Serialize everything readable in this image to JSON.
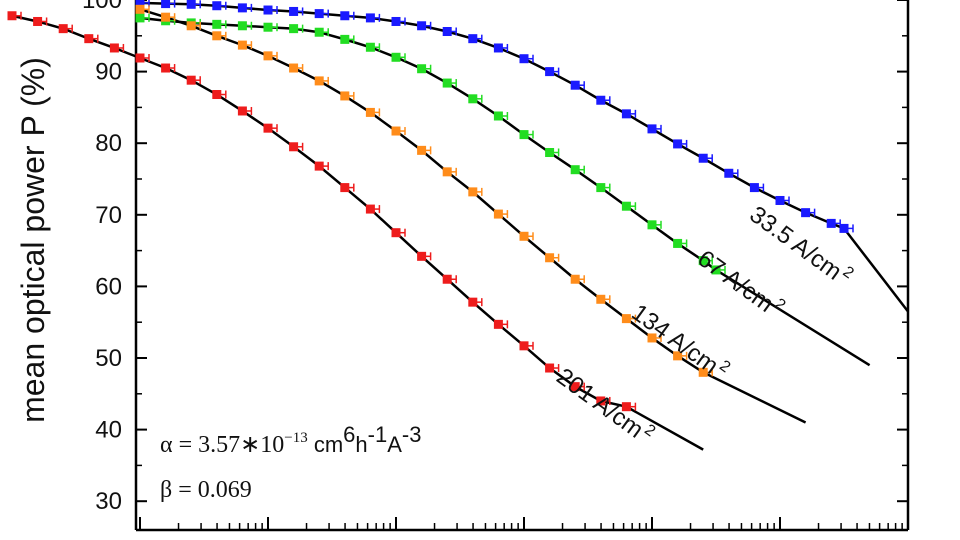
{
  "chart_data": {
    "type": "scatter",
    "title": "",
    "ylabel": "mean optical power P (%)",
    "xlabel": "",
    "x_scale": "log",
    "ylim": [
      25,
      100
    ],
    "yticks": [
      30,
      40,
      50,
      60,
      70,
      80,
      90,
      100
    ],
    "ytick_labels": [
      "30",
      "40",
      "50",
      "60",
      "70",
      "80",
      "90",
      "100"
    ],
    "grid": false,
    "annotations": {
      "alpha_symbol": "α",
      "alpha_value": " = 3.57∗10",
      "alpha_exp": "−13",
      "alpha_unit_cm": " cm",
      "alpha_unit_cm_exp": "6",
      "alpha_unit_h": "h",
      "alpha_unit_h_exp": "-1",
      "alpha_unit_A": "A",
      "alpha_unit_A_exp": "-3",
      "beta_text": "β = 0.069"
    },
    "series": [
      {
        "label": "33.5 A/cm",
        "label_exp": "2",
        "color": "#1a1aff",
        "points": [
          [
            1.0,
            99.6
          ],
          [
            1.2,
            99.5
          ],
          [
            1.4,
            99.4
          ],
          [
            1.6,
            99.2
          ],
          [
            1.8,
            98.9
          ],
          [
            2.0,
            98.6
          ],
          [
            2.2,
            98.4
          ],
          [
            2.4,
            98.1
          ],
          [
            2.6,
            97.8
          ],
          [
            2.8,
            97.5
          ],
          [
            3.0,
            97.0
          ],
          [
            3.2,
            96.4
          ],
          [
            3.4,
            95.6
          ],
          [
            3.6,
            94.6
          ],
          [
            3.8,
            93.3
          ],
          [
            4.0,
            91.8
          ],
          [
            4.2,
            90.0
          ],
          [
            4.4,
            88.1
          ],
          [
            4.6,
            86.0
          ],
          [
            4.8,
            84.1
          ],
          [
            5.0,
            82.0
          ],
          [
            5.2,
            79.9
          ],
          [
            5.4,
            77.9
          ],
          [
            5.6,
            75.8
          ],
          [
            5.8,
            73.8
          ],
          [
            6.0,
            72.0
          ],
          [
            6.2,
            70.3
          ],
          [
            6.4,
            68.8
          ],
          [
            6.5,
            68.1
          ]
        ]
      },
      {
        "label": "67 A/cm",
        "label_exp": "2",
        "color": "#22dd22",
        "points": [
          [
            1.0,
            97.5
          ],
          [
            1.2,
            97.1
          ],
          [
            1.4,
            96.8
          ],
          [
            1.6,
            96.6
          ],
          [
            1.8,
            96.4
          ],
          [
            2.0,
            96.2
          ],
          [
            2.2,
            96.0
          ],
          [
            2.4,
            95.5
          ],
          [
            2.6,
            94.5
          ],
          [
            2.8,
            93.4
          ],
          [
            3.0,
            92.0
          ],
          [
            3.2,
            90.4
          ],
          [
            3.4,
            88.4
          ],
          [
            3.6,
            86.2
          ],
          [
            3.8,
            83.8
          ],
          [
            4.0,
            81.2
          ],
          [
            4.2,
            78.7
          ],
          [
            4.4,
            76.3
          ],
          [
            4.6,
            73.8
          ],
          [
            4.8,
            71.2
          ],
          [
            5.0,
            68.6
          ],
          [
            5.2,
            66.0
          ],
          [
            5.4,
            63.6
          ],
          [
            5.5,
            62.3
          ]
        ]
      },
      {
        "label": "134 A/cm",
        "label_exp": "2",
        "color": "#ff8c1a",
        "points": [
          [
            1.0,
            98.7
          ],
          [
            1.2,
            97.6
          ],
          [
            1.4,
            96.4
          ],
          [
            1.6,
            95.0
          ],
          [
            1.8,
            93.7
          ],
          [
            2.0,
            92.2
          ],
          [
            2.2,
            90.5
          ],
          [
            2.4,
            88.7
          ],
          [
            2.6,
            86.6
          ],
          [
            2.8,
            84.3
          ],
          [
            3.0,
            81.7
          ],
          [
            3.2,
            79.0
          ],
          [
            3.4,
            76.0
          ],
          [
            3.6,
            73.2
          ],
          [
            3.8,
            70.1
          ],
          [
            4.0,
            67.0
          ],
          [
            4.2,
            64.0
          ],
          [
            4.4,
            61.0
          ],
          [
            4.6,
            58.2
          ],
          [
            4.8,
            55.5
          ],
          [
            5.0,
            52.8
          ],
          [
            5.2,
            50.3
          ],
          [
            5.4,
            48.0
          ]
        ]
      },
      {
        "label": "201 A/cm",
        "label_exp": "2",
        "color": "#ee1c1c",
        "points": [
          [
            0.0,
            97.8
          ],
          [
            0.2,
            97.0
          ],
          [
            0.4,
            96.0
          ],
          [
            0.6,
            94.6
          ],
          [
            0.8,
            93.3
          ],
          [
            1.0,
            91.9
          ],
          [
            1.2,
            90.5
          ],
          [
            1.4,
            88.8
          ],
          [
            1.6,
            86.8
          ],
          [
            1.8,
            84.5
          ],
          [
            2.0,
            82.1
          ],
          [
            2.2,
            79.5
          ],
          [
            2.4,
            76.8
          ],
          [
            2.6,
            73.8
          ],
          [
            2.8,
            70.8
          ],
          [
            3.0,
            67.5
          ],
          [
            3.2,
            64.2
          ],
          [
            3.4,
            61.0
          ],
          [
            3.6,
            57.8
          ],
          [
            3.8,
            54.7
          ],
          [
            4.0,
            51.7
          ],
          [
            4.2,
            48.6
          ],
          [
            4.4,
            46.0
          ],
          [
            4.6,
            44.0
          ],
          [
            4.8,
            43.2
          ]
        ]
      }
    ]
  }
}
